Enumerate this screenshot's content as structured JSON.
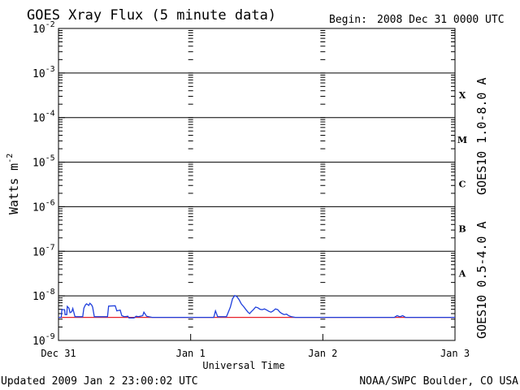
{
  "header": {
    "title": "GOES Xray Flux (5 minute data)",
    "begin_label": "Begin:",
    "begin_value": "2008 Dec 31 0000 UTC"
  },
  "footer": {
    "updated": "Updated 2009 Jan  2 23:00:02 UTC",
    "credit": "NOAA/SWPC Boulder, CO USA"
  },
  "chart_data": {
    "type": "line",
    "title": "GOES Xray Flux (5 minute data)",
    "xlabel": "Universal Time",
    "ylabel": "Watts m",
    "ylabel_exponent": "-2",
    "yscale": "log",
    "ylim": [
      1e-09,
      0.01
    ],
    "y_ticks": [
      {
        "value": 1e-09,
        "label": "10",
        "exp": "-9"
      },
      {
        "value": 1e-08,
        "label": "10",
        "exp": "-8"
      },
      {
        "value": 1e-07,
        "label": "10",
        "exp": "-7"
      },
      {
        "value": 1e-06,
        "label": "10",
        "exp": "-6"
      },
      {
        "value": 1e-05,
        "label": "10",
        "exp": "-5"
      },
      {
        "value": 0.0001,
        "label": "10",
        "exp": "-4"
      },
      {
        "value": 0.001,
        "label": "10",
        "exp": "-3"
      },
      {
        "value": 0.01,
        "label": "10",
        "exp": "-2"
      }
    ],
    "x_range_hours": [
      0,
      72
    ],
    "x_ticks": [
      {
        "hour": 0,
        "label": "Dec 31"
      },
      {
        "hour": 24,
        "label": "Jan 1"
      },
      {
        "hour": 48,
        "label": "Jan 2"
      },
      {
        "hour": 72,
        "label": "Jan 3"
      }
    ],
    "flare_classes": [
      {
        "label": "X",
        "value": 0.00032
      },
      {
        "label": "M",
        "value": 3.2e-05
      },
      {
        "label": "C",
        "value": 3.2e-06
      },
      {
        "label": "B",
        "value": 3.2e-07
      },
      {
        "label": "A",
        "value": 3.2e-08
      }
    ],
    "grid": true,
    "series": [
      {
        "name": "GOES10 1.0-8.0 A",
        "color": "#e8202a",
        "points": [
          [
            0,
            3.3e-09
          ],
          [
            72,
            3.3e-09
          ]
        ]
      },
      {
        "name": "GOES10 0.5-4.0 A",
        "color": "#1f3fdc",
        "points": [
          [
            0,
            3.3e-09
          ],
          [
            0.5,
            3.3e-09
          ],
          [
            0.6,
            4.9e-09
          ],
          [
            1.1,
            4.9e-09
          ],
          [
            1.2,
            3.8e-09
          ],
          [
            1.5,
            3.8e-09
          ],
          [
            1.6,
            5.8e-09
          ],
          [
            1.9,
            5.3e-09
          ],
          [
            2.1,
            4.2e-09
          ],
          [
            2.4,
            4.4e-09
          ],
          [
            2.6,
            5.2e-09
          ],
          [
            3.0,
            3.4e-09
          ],
          [
            4.4,
            3.4e-09
          ],
          [
            4.6,
            5.3e-09
          ],
          [
            4.9,
            6.3e-09
          ],
          [
            5.1,
            6.6e-09
          ],
          [
            5.5,
            6.1e-09
          ],
          [
            5.7,
            6.8e-09
          ],
          [
            6.0,
            6.3e-09
          ],
          [
            6.2,
            5.6e-09
          ],
          [
            6.5,
            3.4e-09
          ],
          [
            8.9,
            3.4e-09
          ],
          [
            9.1,
            5.9e-09
          ],
          [
            10.3,
            6e-09
          ],
          [
            10.6,
            4.6e-09
          ],
          [
            11.2,
            4.8e-09
          ],
          [
            11.5,
            3.6e-09
          ],
          [
            12.0,
            3.4e-09
          ],
          [
            12.6,
            3.5e-09
          ],
          [
            12.8,
            3.2e-09
          ],
          [
            13.7,
            3.2e-09
          ],
          [
            14.1,
            3.5e-09
          ],
          [
            14.5,
            3.4e-09
          ],
          [
            15.3,
            3.6e-09
          ],
          [
            15.5,
            4.3e-09
          ],
          [
            15.8,
            3.8e-09
          ],
          [
            16.0,
            3.5e-09
          ],
          [
            17.0,
            3.3e-09
          ],
          [
            20.0,
            3.3e-09
          ],
          [
            24.0,
            3.3e-09
          ],
          [
            28.2,
            3.3e-09
          ],
          [
            28.5,
            4.6e-09
          ],
          [
            28.9,
            3.4e-09
          ],
          [
            30.5,
            3.4e-09
          ],
          [
            30.8,
            4.2e-09
          ],
          [
            31.2,
            5.6e-09
          ],
          [
            31.6,
            8.6e-09
          ],
          [
            32.0,
            1.02e-08
          ],
          [
            32.4,
            9.6e-09
          ],
          [
            32.8,
            8.2e-09
          ],
          [
            33.2,
            6.6e-09
          ],
          [
            33.6,
            5.8e-09
          ],
          [
            34.0,
            5e-09
          ],
          [
            34.4,
            4.3e-09
          ],
          [
            34.7,
            4e-09
          ],
          [
            35.0,
            4.4e-09
          ],
          [
            35.4,
            4.9e-09
          ],
          [
            35.8,
            5.6e-09
          ],
          [
            36.2,
            5.4e-09
          ],
          [
            36.6,
            5e-09
          ],
          [
            37.0,
            4.9e-09
          ],
          [
            37.4,
            5.1e-09
          ],
          [
            37.8,
            4.8e-09
          ],
          [
            38.2,
            4.5e-09
          ],
          [
            38.6,
            4.3e-09
          ],
          [
            39.0,
            4.6e-09
          ],
          [
            39.4,
            5.1e-09
          ],
          [
            39.8,
            4.9e-09
          ],
          [
            40.2,
            4.3e-09
          ],
          [
            40.6,
            4e-09
          ],
          [
            41.0,
            3.8e-09
          ],
          [
            41.4,
            3.9e-09
          ],
          [
            41.8,
            3.6e-09
          ],
          [
            42.3,
            3.4e-09
          ],
          [
            43.0,
            3.3e-09
          ],
          [
            48.0,
            3.3e-09
          ],
          [
            61.0,
            3.3e-09
          ],
          [
            61.5,
            3.6e-09
          ],
          [
            62.0,
            3.4e-09
          ],
          [
            62.5,
            3.6e-09
          ],
          [
            63.0,
            3.3e-09
          ],
          [
            72.0,
            3.3e-09
          ]
        ]
      }
    ]
  }
}
